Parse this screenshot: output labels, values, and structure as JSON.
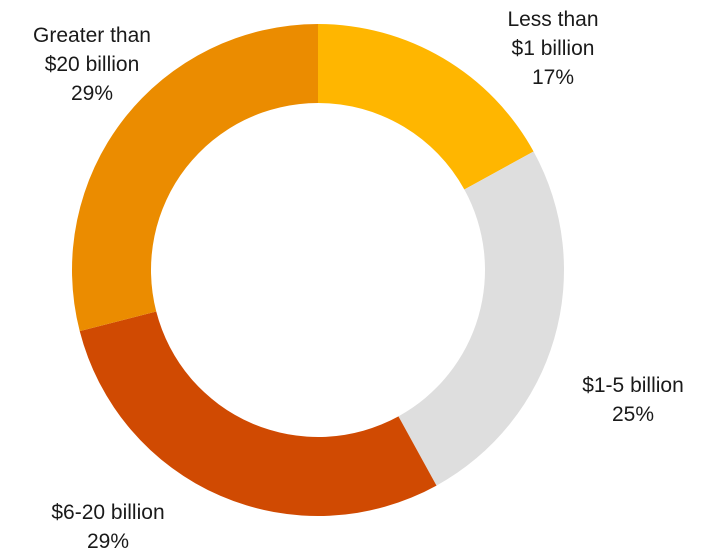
{
  "chart_data": {
    "type": "pie",
    "variant": "donut",
    "title": "",
    "categories": [
      "Less than $1 billion",
      "$1-5 billion",
      "$6-20 billion",
      "Greater than $20 billion"
    ],
    "values": [
      17,
      25,
      29,
      29
    ],
    "unit": "%",
    "colors": [
      "#FFB600",
      "#DEDEDE",
      "#D04A02",
      "#EB8C00"
    ],
    "legend": "none",
    "labels": [
      {
        "lines": [
          "Less than",
          "$1 billion"
        ],
        "value_text": "17%"
      },
      {
        "lines": [
          "$1-5 billion"
        ],
        "value_text": "25%"
      },
      {
        "lines": [
          "$6-20 billion"
        ],
        "value_text": "29%"
      },
      {
        "lines": [
          "Greater than",
          "$20 billion"
        ],
        "value_text": "29%"
      }
    ]
  }
}
